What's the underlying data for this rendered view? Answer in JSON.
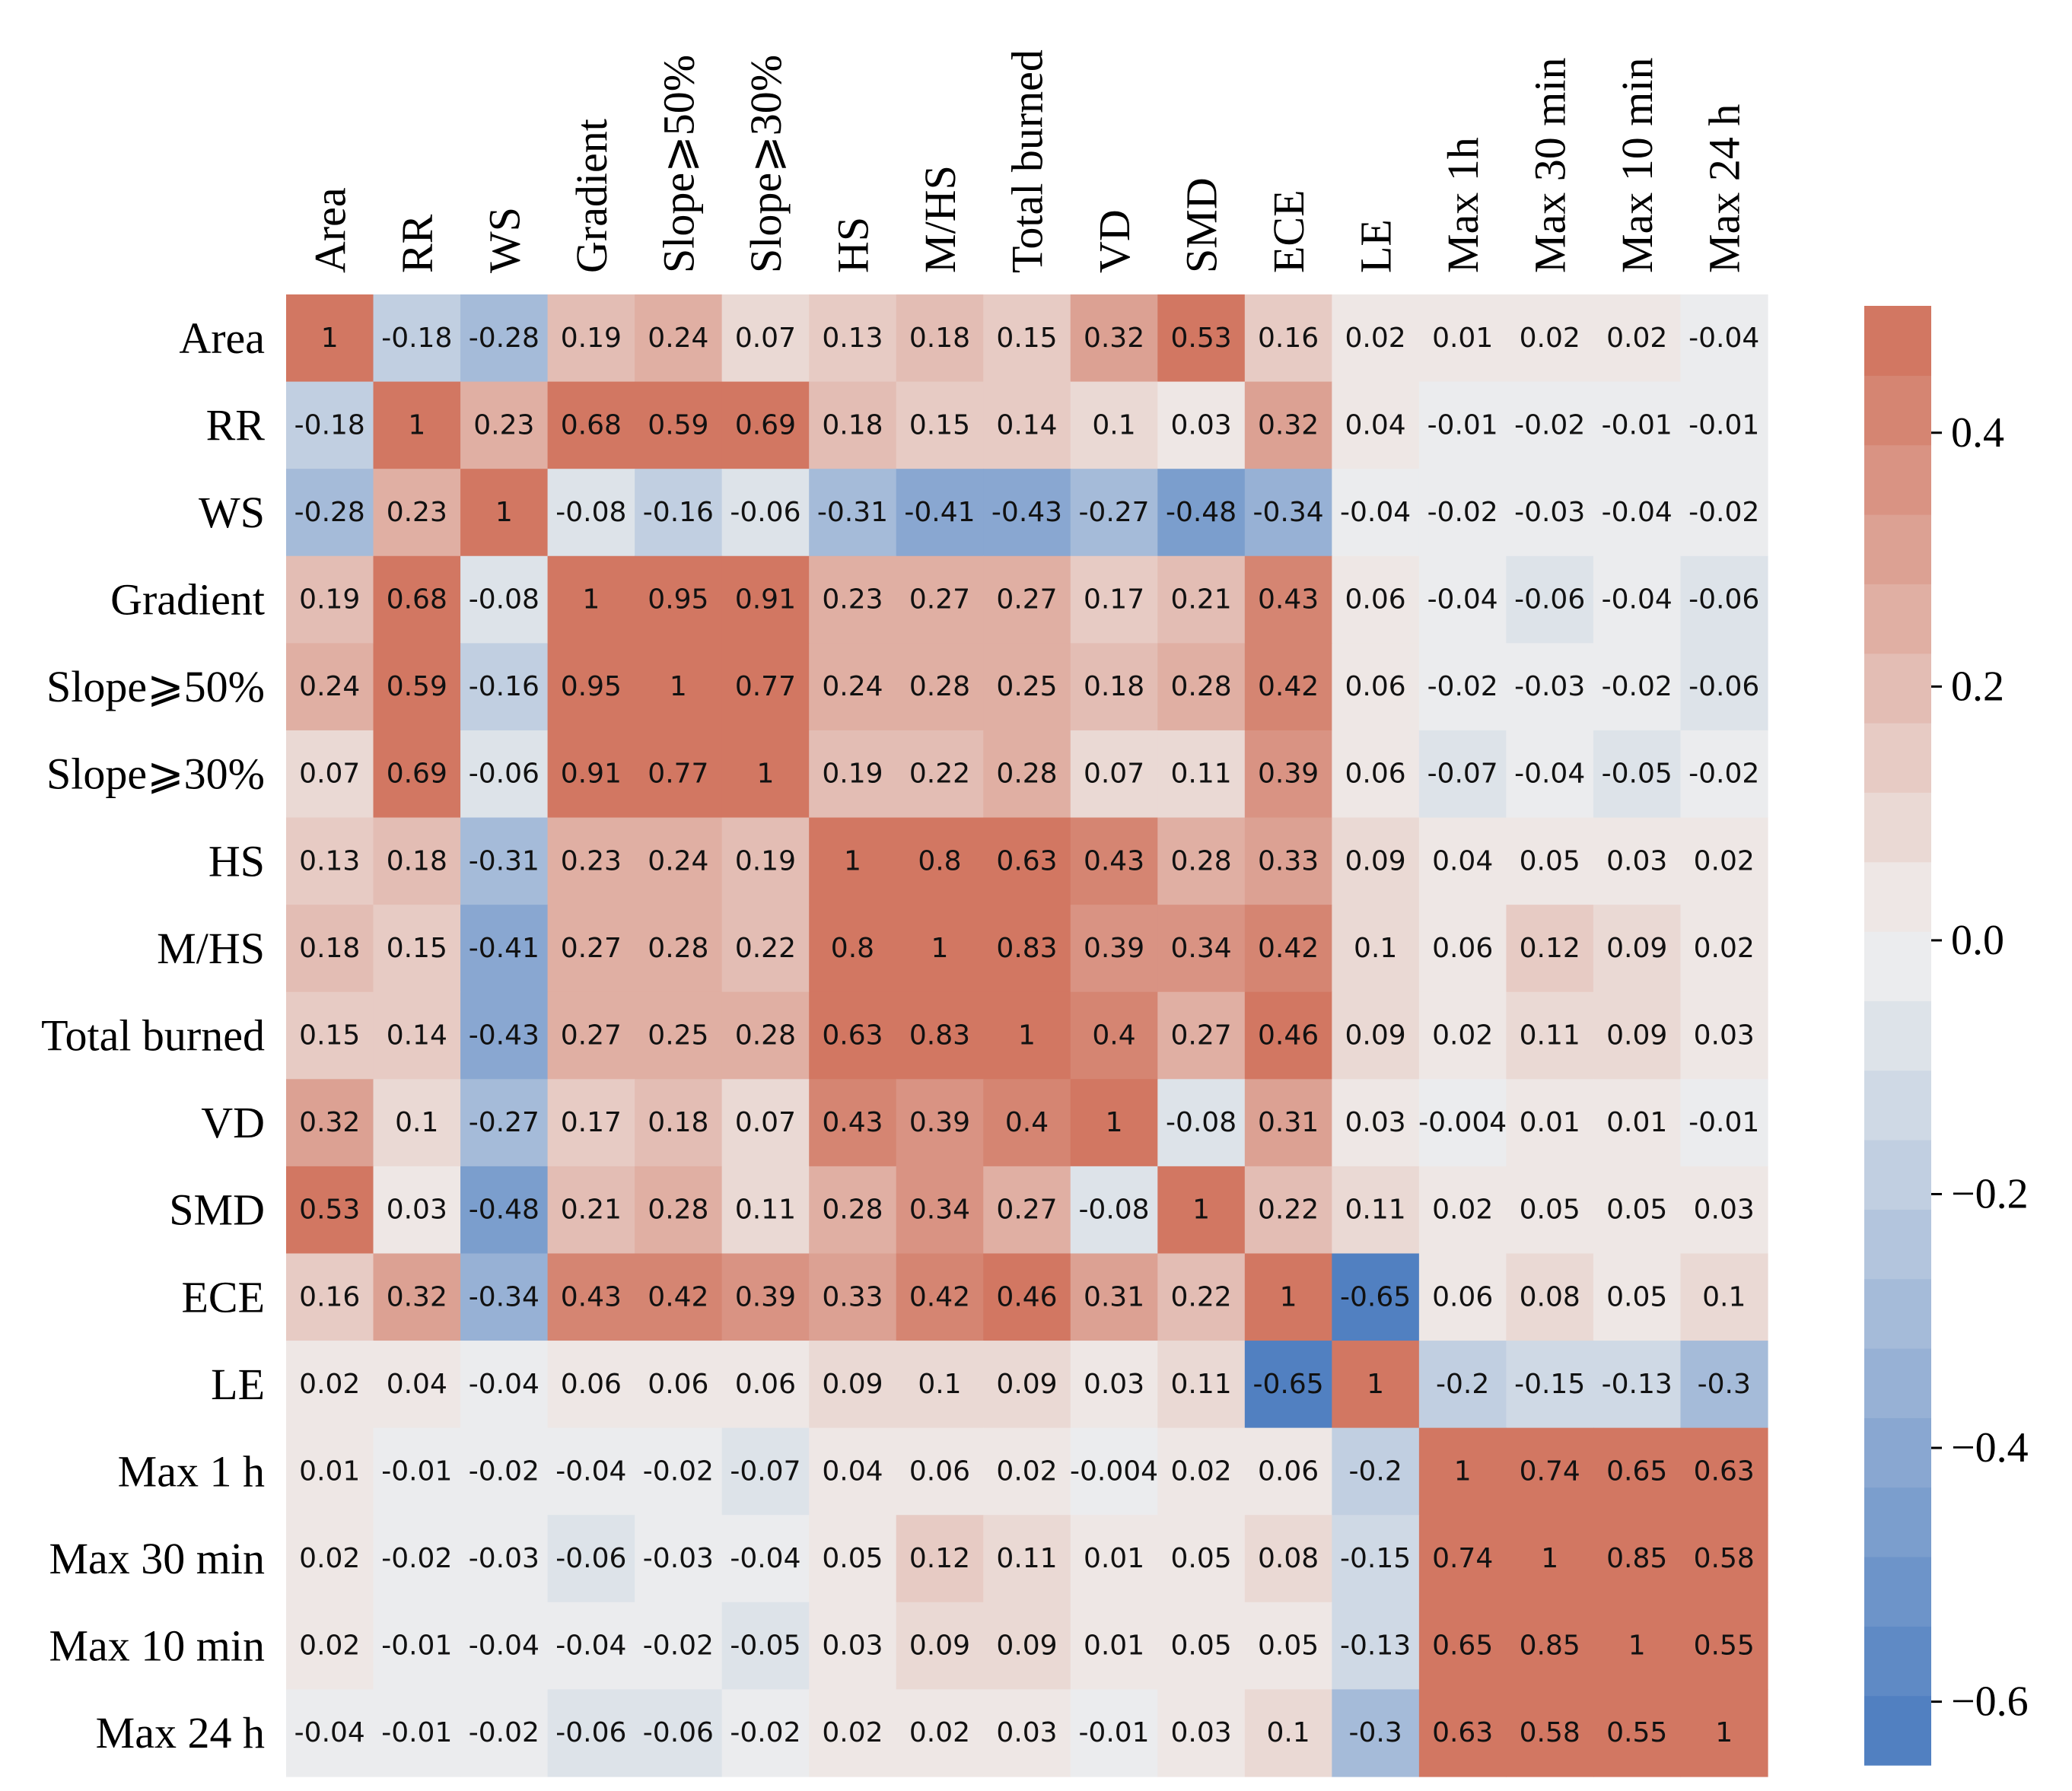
{
  "chart_data": {
    "type": "heatmap",
    "title": "",
    "labels": [
      "Area",
      "RR",
      "WS",
      "Gradient",
      "Slope⩾50%",
      "Slope⩾30%",
      "HS",
      "M/HS",
      "Total burned",
      "VD",
      "SMD",
      "ECE",
      "LE",
      "Max 1 h",
      "Max 30 min",
      "Max 10 min",
      "Max 24 h"
    ],
    "column_labels": [
      "Area",
      "RR",
      "WS",
      "Gradient",
      "Slope⩾50%",
      "Slope⩾30%",
      "HS",
      "M/HS",
      "Total burned",
      "VD",
      "SMD",
      "ECE",
      "LE",
      "Max 1h",
      "Max 30 min",
      "Max 10 min",
      "Max 24 h"
    ],
    "value_labels": [
      [
        "1",
        "-0.18",
        "-0.28",
        "0.19",
        "0.24",
        "0.07",
        "0.13",
        "0.18",
        "0.15",
        "0.32",
        "0.53",
        "0.16",
        "0.02",
        "0.01",
        "0.02",
        "0.02",
        "-0.04"
      ],
      [
        "-0.18",
        "1",
        "0.23",
        "0.68",
        "0.59",
        "0.69",
        "0.18",
        "0.15",
        "0.14",
        "0.1",
        "0.03",
        "0.32",
        "0.04",
        "-0.01",
        "-0.02",
        "-0.01",
        "-0.01"
      ],
      [
        "-0.28",
        "0.23",
        "1",
        "-0.08",
        "-0.16",
        "-0.06",
        "-0.31",
        "-0.41",
        "-0.43",
        "-0.27",
        "-0.48",
        "-0.34",
        "-0.04",
        "-0.02",
        "-0.03",
        "-0.04",
        "-0.02"
      ],
      [
        "0.19",
        "0.68",
        "-0.08",
        "1",
        "0.95",
        "0.91",
        "0.23",
        "0.27",
        "0.27",
        "0.17",
        "0.21",
        "0.43",
        "0.06",
        "-0.04",
        "-0.06",
        "-0.04",
        "-0.06"
      ],
      [
        "0.24",
        "0.59",
        "-0.16",
        "0.95",
        "1",
        "0.77",
        "0.24",
        "0.28",
        "0.25",
        "0.18",
        "0.28",
        "0.42",
        "0.06",
        "-0.02",
        "-0.03",
        "-0.02",
        "-0.06"
      ],
      [
        "0.07",
        "0.69",
        "-0.06",
        "0.91",
        "0.77",
        "1",
        "0.19",
        "0.22",
        "0.28",
        "0.07",
        "0.11",
        "0.39",
        "0.06",
        "-0.07",
        "-0.04",
        "-0.05",
        "-0.02"
      ],
      [
        "0.13",
        "0.18",
        "-0.31",
        "0.23",
        "0.24",
        "0.19",
        "1",
        "0.8",
        "0.63",
        "0.43",
        "0.28",
        "0.33",
        "0.09",
        "0.04",
        "0.05",
        "0.03",
        "0.02"
      ],
      [
        "0.18",
        "0.15",
        "-0.41",
        "0.27",
        "0.28",
        "0.22",
        "0.8",
        "1",
        "0.83",
        "0.39",
        "0.34",
        "0.42",
        "0.1",
        "0.06",
        "0.12",
        "0.09",
        "0.02"
      ],
      [
        "0.15",
        "0.14",
        "-0.43",
        "0.27",
        "0.25",
        "0.28",
        "0.63",
        "0.83",
        "1",
        "0.4",
        "0.27",
        "0.46",
        "0.09",
        "0.02",
        "0.11",
        "0.09",
        "0.03"
      ],
      [
        "0.32",
        "0.1",
        "-0.27",
        "0.17",
        "0.18",
        "0.07",
        "0.43",
        "0.39",
        "0.4",
        "1",
        "-0.08",
        "0.31",
        "0.03",
        "-0.004",
        "0.01",
        "0.01",
        "-0.01"
      ],
      [
        "0.53",
        "0.03",
        "-0.48",
        "0.21",
        "0.28",
        "0.11",
        "0.28",
        "0.34",
        "0.27",
        "-0.08",
        "1",
        "0.22",
        "0.11",
        "0.02",
        "0.05",
        "0.05",
        "0.03"
      ],
      [
        "0.16",
        "0.32",
        "-0.34",
        "0.43",
        "0.42",
        "0.39",
        "0.33",
        "0.42",
        "0.46",
        "0.31",
        "0.22",
        "1",
        "-0.65",
        "0.06",
        "0.08",
        "0.05",
        "0.1"
      ],
      [
        "0.02",
        "0.04",
        "-0.04",
        "0.06",
        "0.06",
        "0.06",
        "0.09",
        "0.1",
        "0.09",
        "0.03",
        "0.11",
        "-0.65",
        "1",
        "-0.2",
        "-0.15",
        "-0.13",
        "-0.3"
      ],
      [
        "0.01",
        "-0.01",
        "-0.02",
        "-0.04",
        "-0.02",
        "-0.07",
        "0.04",
        "0.06",
        "0.02",
        "-0.004",
        "0.02",
        "0.06",
        "-0.2",
        "1",
        "0.74",
        "0.65",
        "0.63"
      ],
      [
        "0.02",
        "-0.02",
        "-0.03",
        "-0.06",
        "-0.03",
        "-0.04",
        "0.05",
        "0.12",
        "0.11",
        "0.01",
        "0.05",
        "0.08",
        "-0.15",
        "0.74",
        "1",
        "0.85",
        "0.58"
      ],
      [
        "0.02",
        "-0.01",
        "-0.04",
        "-0.04",
        "-0.02",
        "-0.05",
        "0.03",
        "0.09",
        "0.09",
        "0.01",
        "0.05",
        "0.05",
        "-0.13",
        "0.65",
        "0.85",
        "1",
        "0.55"
      ],
      [
        "-0.04",
        "-0.01",
        "-0.02",
        "-0.06",
        "-0.06",
        "-0.02",
        "0.02",
        "0.02",
        "0.03",
        "-0.01",
        "0.03",
        "0.1",
        "-0.3",
        "0.63",
        "0.58",
        "0.55",
        "1"
      ]
    ],
    "colorbar": {
      "range": [
        -0.65,
        0.5
      ],
      "ticks": [
        0.4,
        0.2,
        0.0,
        -0.2,
        -0.4,
        -0.6
      ],
      "tick_labels": [
        "0.4",
        "0.2",
        "0.0",
        "−0.2",
        "−0.4",
        "−0.6"
      ],
      "colors": {
        "negative": "#4a7bbf",
        "center": "#f0f0ef",
        "positive": "#d0705a"
      },
      "levels": 21
    }
  }
}
